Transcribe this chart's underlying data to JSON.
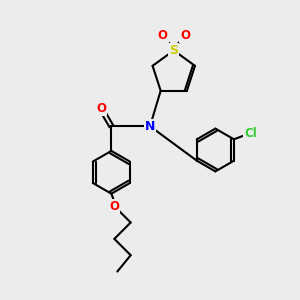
{
  "bg_color": "#ececec",
  "bond_color": "#000000",
  "sulfur_color": "#cccc00",
  "oxygen_color": "#ff0000",
  "nitrogen_color": "#0000ff",
  "chlorine_color": "#33cc33",
  "line_width": 1.5,
  "figsize": [
    3.0,
    3.0
  ],
  "dpi": 100,
  "xlim": [
    0,
    10
  ],
  "ylim": [
    0,
    10
  ]
}
